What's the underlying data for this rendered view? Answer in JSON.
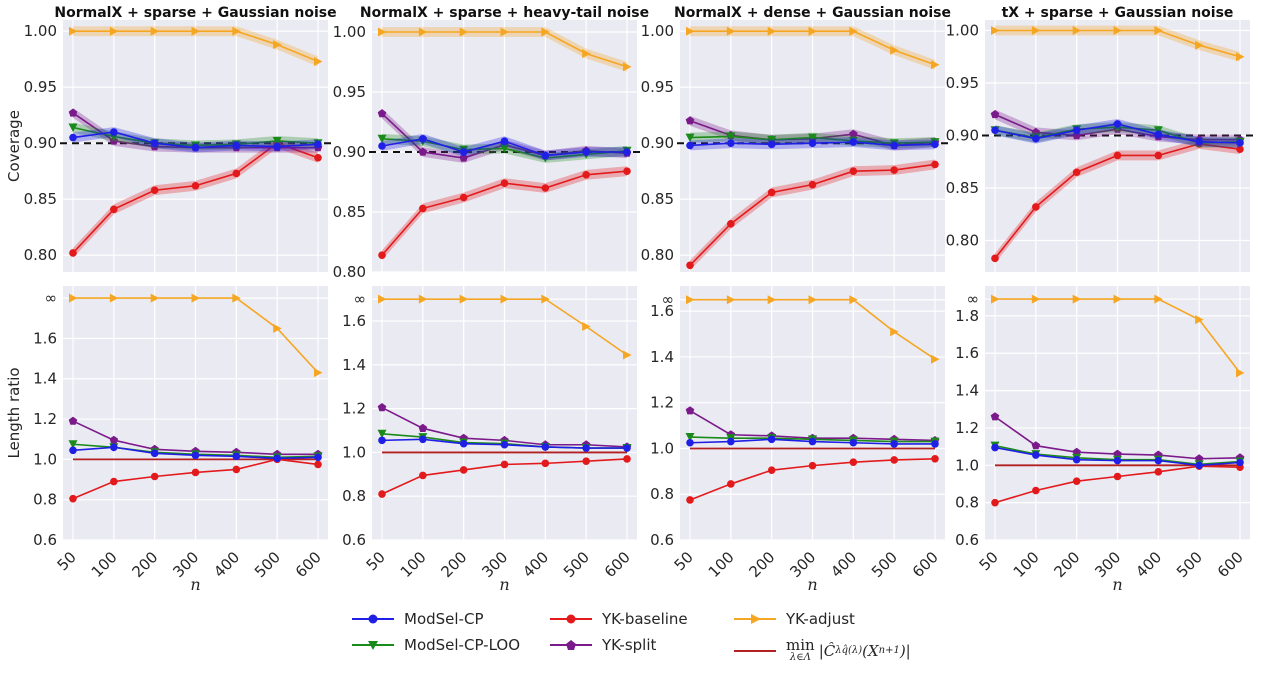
{
  "chart_data": {
    "type": "line",
    "x_categories": [
      "50",
      "100",
      "200",
      "300",
      "400",
      "500",
      "600"
    ],
    "xlabel": "n",
    "row_ylabels": [
      "Coverage",
      "Length ratio"
    ],
    "reference_coverage": 0.9,
    "reference_ratio": 1.0,
    "series_styles": [
      {
        "key": "modsel",
        "name": "ModSel-CP",
        "color": "#1f1fe6",
        "marker": "circle"
      },
      {
        "key": "loo",
        "name": "ModSel-CP-LOO",
        "color": "#1a8a1a",
        "marker": "triangle-down"
      },
      {
        "key": "ykb",
        "name": "YK-baseline",
        "color": "#e31a1c",
        "marker": "circle"
      },
      {
        "key": "yks",
        "name": "YK-split",
        "color": "#7b1a8a",
        "marker": "pentagon"
      },
      {
        "key": "yka",
        "name": "YK-adjust",
        "color": "#f5a623",
        "marker": "triangle-right"
      },
      {
        "key": "min",
        "name": "min over lambda in Lambda of |C-hat lambda q(lambda) (X n+1)|",
        "color": "#b22222",
        "marker": "line"
      }
    ],
    "panels": [
      {
        "title": "NormalX + sparse + Gaussian noise",
        "coverage": {
          "ylim": [
            0.785,
            1.01
          ],
          "yticks": [
            "0.80",
            "0.85",
            "0.90",
            "0.95",
            "1.00"
          ],
          "series": {
            "modsel": [
              0.905,
              0.91,
              0.9,
              0.896,
              0.898,
              0.897,
              0.899
            ],
            "loo": [
              0.914,
              0.906,
              0.9,
              0.898,
              0.899,
              0.902,
              0.9
            ],
            "ykb": [
              0.802,
              0.841,
              0.858,
              0.862,
              0.873,
              0.9,
              0.887
            ],
            "yks": [
              0.927,
              0.902,
              0.897,
              0.896,
              0.896,
              0.896,
              0.896
            ],
            "yka": [
              1.0,
              1.0,
              1.0,
              1.0,
              1.0,
              0.988,
              0.973
            ]
          }
        },
        "ratio": {
          "ylim": [
            0.6,
            1.86
          ],
          "yticks": [
            "0.6",
            "0.8",
            "1.0",
            "1.2",
            "1.4",
            "1.6",
            "∞"
          ],
          "inf_value": 1.8,
          "series": {
            "modsel": [
              1.045,
              1.06,
              1.03,
              1.02,
              1.015,
              1.005,
              1.01
            ],
            "loo": [
              1.075,
              1.06,
              1.035,
              1.025,
              1.02,
              1.01,
              1.015
            ],
            "ykb": [
              0.805,
              0.89,
              0.915,
              0.935,
              0.95,
              1.0,
              0.975
            ],
            "yks": [
              1.19,
              1.095,
              1.05,
              1.04,
              1.035,
              1.025,
              1.025
            ],
            "yka": [
              "∞",
              "∞",
              "∞",
              "∞",
              "∞",
              1.65,
              1.43
            ],
            "min": [
              1.0,
              1.0,
              1.0,
              1.0,
              1.0,
              1.0,
              1.0
            ]
          }
        }
      },
      {
        "title": "NormalX + sparse + heavy-tail noise",
        "coverage": {
          "ylim": [
            0.8,
            1.01
          ],
          "yticks": [
            "0.80",
            "0.85",
            "0.90",
            "0.95",
            "1.00"
          ],
          "series": {
            "modsel": [
              0.905,
              0.911,
              0.9,
              0.909,
              0.897,
              0.9,
              0.9
            ],
            "loo": [
              0.911,
              0.909,
              0.902,
              0.903,
              0.895,
              0.898,
              0.901
            ],
            "ykb": [
              0.814,
              0.853,
              0.862,
              0.874,
              0.87,
              0.881,
              0.884
            ],
            "yks": [
              0.932,
              0.9,
              0.895,
              0.906,
              0.897,
              0.901,
              0.899
            ],
            "yka": [
              1.0,
              1.0,
              1.0,
              1.0,
              1.0,
              0.982,
              0.971
            ]
          }
        },
        "ratio": {
          "ylim": [
            0.6,
            1.76
          ],
          "yticks": [
            "0.6",
            "0.8",
            "1.0",
            "1.2",
            "1.4",
            "1.6",
            "∞"
          ],
          "inf_value": 1.7,
          "series": {
            "modsel": [
              1.055,
              1.06,
              1.04,
              1.035,
              1.025,
              1.02,
              1.02
            ],
            "loo": [
              1.085,
              1.07,
              1.045,
              1.04,
              1.025,
              1.02,
              1.02
            ],
            "ykb": [
              0.81,
              0.895,
              0.92,
              0.945,
              0.95,
              0.96,
              0.97
            ],
            "yks": [
              1.205,
              1.11,
              1.065,
              1.055,
              1.035,
              1.035,
              1.025
            ],
            "yka": [
              "∞",
              "∞",
              "∞",
              "∞",
              "∞",
              1.575,
              1.445
            ],
            "min": [
              1.0,
              1.0,
              1.0,
              1.0,
              1.0,
              1.0,
              1.0
            ]
          }
        }
      },
      {
        "title": "NormalX + dense + Gaussian noise",
        "coverage": {
          "ylim": [
            0.785,
            1.01
          ],
          "yticks": [
            "0.80",
            "0.85",
            "0.90",
            "0.95",
            "1.00"
          ],
          "series": {
            "modsel": [
              0.898,
              0.9,
              0.899,
              0.9,
              0.901,
              0.898,
              0.899
            ],
            "loo": [
              0.905,
              0.906,
              0.903,
              0.905,
              0.902,
              0.9,
              0.901
            ],
            "ykb": [
              0.791,
              0.828,
              0.856,
              0.863,
              0.875,
              0.876,
              0.881
            ],
            "yks": [
              0.92,
              0.907,
              0.903,
              0.904,
              0.908,
              0.898,
              0.901
            ],
            "yka": [
              1.0,
              1.0,
              1.0,
              1.0,
              1.0,
              0.983,
              0.97
            ]
          }
        },
        "ratio": {
          "ylim": [
            0.6,
            1.71
          ],
          "yticks": [
            "0.6",
            "0.8",
            "1.0",
            "1.2",
            "1.4",
            "1.6",
            "∞"
          ],
          "inf_value": 1.65,
          "series": {
            "modsel": [
              1.025,
              1.03,
              1.04,
              1.03,
              1.025,
              1.02,
              1.02
            ],
            "loo": [
              1.05,
              1.045,
              1.045,
              1.04,
              1.035,
              1.03,
              1.03
            ],
            "ykb": [
              0.775,
              0.845,
              0.905,
              0.925,
              0.94,
              0.95,
              0.955
            ],
            "yks": [
              1.165,
              1.06,
              1.055,
              1.045,
              1.045,
              1.04,
              1.035
            ],
            "yka": [
              "∞",
              "∞",
              "∞",
              "∞",
              "∞",
              1.51,
              1.39
            ],
            "min": [
              1.0,
              1.0,
              1.0,
              1.0,
              1.0,
              1.0,
              1.0
            ]
          }
        }
      },
      {
        "title": "tX + sparse + Gaussian noise",
        "coverage": {
          "ylim": [
            0.77,
            1.01
          ],
          "yticks": [
            "0.80",
            "0.85",
            "0.90",
            "0.95",
            "1.00"
          ],
          "series": {
            "modsel": [
              0.905,
              0.897,
              0.905,
              0.911,
              0.901,
              0.894,
              0.893
            ],
            "loo": [
              0.905,
              0.898,
              0.906,
              0.908,
              0.905,
              0.893,
              0.894
            ],
            "ykb": [
              0.783,
              0.832,
              0.865,
              0.881,
              0.881,
              0.892,
              0.887
            ],
            "yks": [
              0.92,
              0.903,
              0.9,
              0.906,
              0.899,
              0.896,
              0.896
            ],
            "yka": [
              1.0,
              1.0,
              1.0,
              1.0,
              1.0,
              0.986,
              0.975
            ]
          }
        },
        "ratio": {
          "ylim": [
            0.6,
            1.96
          ],
          "yticks": [
            "0.6",
            "0.8",
            "1.0",
            "1.2",
            "1.4",
            "1.6",
            "1.8",
            "∞"
          ],
          "inf_value": 1.89,
          "series": {
            "modsel": [
              1.095,
              1.055,
              1.03,
              1.025,
              1.025,
              1.0,
              1.015
            ],
            "loo": [
              1.105,
              1.06,
              1.04,
              1.03,
              1.03,
              1.005,
              1.02
            ],
            "ykb": [
              0.8,
              0.865,
              0.915,
              0.94,
              0.965,
              0.995,
              0.99
            ],
            "yks": [
              1.26,
              1.105,
              1.07,
              1.06,
              1.055,
              1.035,
              1.04
            ],
            "yka": [
              "∞",
              "∞",
              "∞",
              "∞",
              "∞",
              1.78,
              1.495
            ],
            "min": [
              1.0,
              1.0,
              1.0,
              1.0,
              1.0,
              1.0,
              1.0
            ]
          }
        }
      }
    ]
  },
  "legend": {
    "items": [
      {
        "key": "modsel",
        "label": "ModSel-CP"
      },
      {
        "key": "loo",
        "label": "ModSel-CP-LOO"
      },
      {
        "key": "ykb",
        "label": "YK-baseline"
      },
      {
        "key": "yks",
        "label": "YK-split"
      },
      {
        "key": "yka",
        "label": "YK-adjust"
      }
    ],
    "min_label": {
      "operator": "min",
      "subscript": "λ∈Λ",
      "body": "|Ĉ",
      "superscript": "λ",
      "qsub": "q̂(λ)",
      "tail": "(X",
      "xsub": "n+1",
      "close": ")|"
    }
  }
}
